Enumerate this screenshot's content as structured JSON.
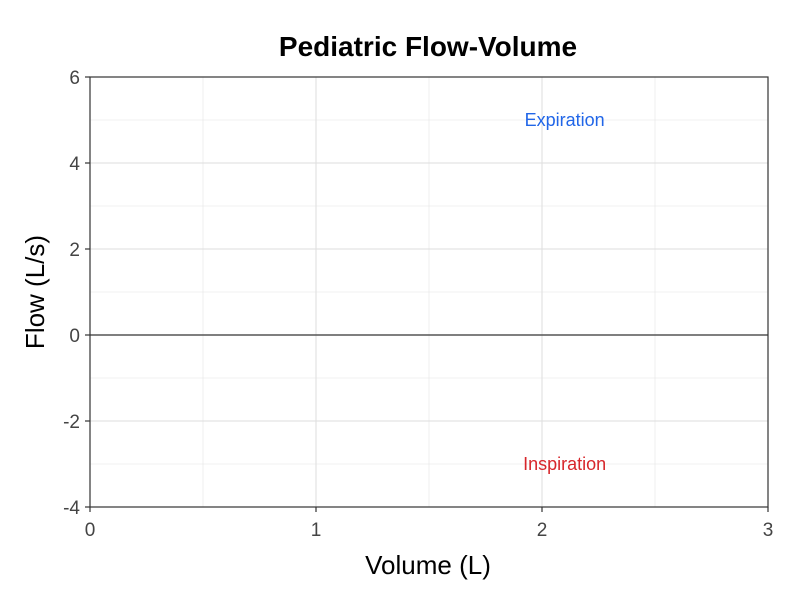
{
  "chart_data": {
    "type": "line",
    "title": "Pediatric Flow-Volume",
    "xlabel": "Volume (L)",
    "ylabel": "Flow (L/s)",
    "xlim": [
      0,
      3
    ],
    "ylim": [
      -4,
      6
    ],
    "x_ticks": [
      0,
      1,
      2,
      3
    ],
    "y_ticks": [
      -4,
      -2,
      0,
      2,
      4,
      6
    ],
    "x_tick_labels": [
      "0",
      "1",
      "2",
      "3"
    ],
    "y_tick_labels": [
      "-4",
      "-2",
      "0",
      "2",
      "4",
      "6"
    ],
    "grid": true,
    "reference_line_y": 0,
    "series": [],
    "annotations": [
      {
        "text": "Expiration",
        "x": 2.1,
        "y": 5,
        "color": "#2166e8"
      },
      {
        "text": "Inspiration",
        "x": 2.1,
        "y": -3,
        "color": "#d7262b"
      }
    ]
  }
}
